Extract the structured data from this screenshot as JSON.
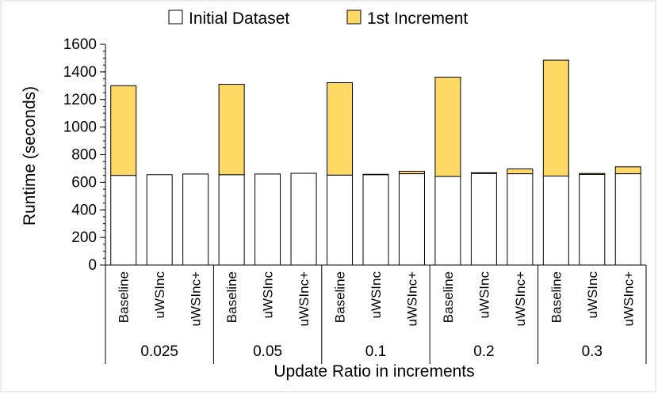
{
  "chart_data": {
    "type": "bar",
    "stacked": true,
    "ylabel": "Runtime (seconds)",
    "xlabel": "Update Ratio in increments",
    "ylim": [
      0,
      1600
    ],
    "yticks": [
      0,
      200,
      400,
      600,
      800,
      1000,
      1200,
      1400,
      1600
    ],
    "groups": [
      "0.025",
      "0.05",
      "0.1",
      "0.2",
      "0.3"
    ],
    "categories": [
      "Baseline",
      "uWSInc",
      "uWSInc+"
    ],
    "legend_position": "top",
    "series": [
      {
        "name": "Initial Dataset",
        "color": "#ffffff",
        "values": [
          [
            650,
            655,
            660
          ],
          [
            655,
            660,
            665
          ],
          [
            652,
            655,
            662
          ],
          [
            642,
            664,
            662
          ],
          [
            645,
            657,
            662
          ]
        ]
      },
      {
        "name": "1st Increment",
        "color": "#ffd966",
        "values": [
          [
            650,
            0,
            0
          ],
          [
            655,
            0,
            0
          ],
          [
            670,
            3,
            18
          ],
          [
            720,
            5,
            35
          ],
          [
            840,
            7,
            50
          ]
        ]
      }
    ]
  }
}
